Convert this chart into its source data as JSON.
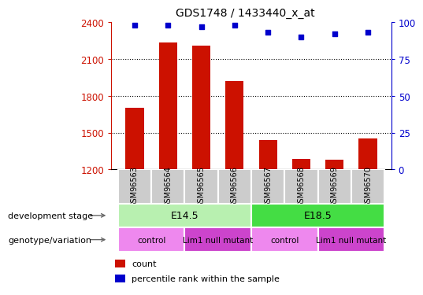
{
  "title": "GDS1748 / 1433440_x_at",
  "samples": [
    "GSM96563",
    "GSM96564",
    "GSM96565",
    "GSM96566",
    "GSM96567",
    "GSM96568",
    "GSM96569",
    "GSM96570"
  ],
  "counts": [
    1700,
    2230,
    2210,
    1920,
    1440,
    1285,
    1280,
    1450
  ],
  "percentile_ranks": [
    98,
    98,
    97,
    98,
    93,
    90,
    92,
    93
  ],
  "ylim_left": [
    1200,
    2400
  ],
  "ylim_right": [
    0,
    100
  ],
  "yticks_left": [
    1200,
    1500,
    1800,
    2100,
    2400
  ],
  "yticks_right": [
    0,
    25,
    50,
    75,
    100
  ],
  "bar_color": "#cc1100",
  "scatter_color": "#0000cc",
  "bar_width": 0.55,
  "development_stage_labels": [
    {
      "label": "E14.5",
      "start": 0,
      "end": 3,
      "color": "#b8f0b0"
    },
    {
      "label": "E18.5",
      "start": 4,
      "end": 7,
      "color": "#44dd44"
    }
  ],
  "genotype_labels": [
    {
      "label": "control",
      "start": 0,
      "end": 1,
      "color": "#ee88ee"
    },
    {
      "label": "Lim1 null mutant",
      "start": 2,
      "end": 3,
      "color": "#cc44cc"
    },
    {
      "label": "control",
      "start": 4,
      "end": 5,
      "color": "#ee88ee"
    },
    {
      "label": "Lim1 null mutant",
      "start": 6,
      "end": 7,
      "color": "#cc44cc"
    }
  ],
  "dev_stage_row_label": "development stage",
  "geno_row_label": "genotype/variation",
  "legend_count_label": "count",
  "legend_pct_label": "percentile rank within the sample",
  "sample_box_color": "#cccccc",
  "arrow_color": "#666666"
}
